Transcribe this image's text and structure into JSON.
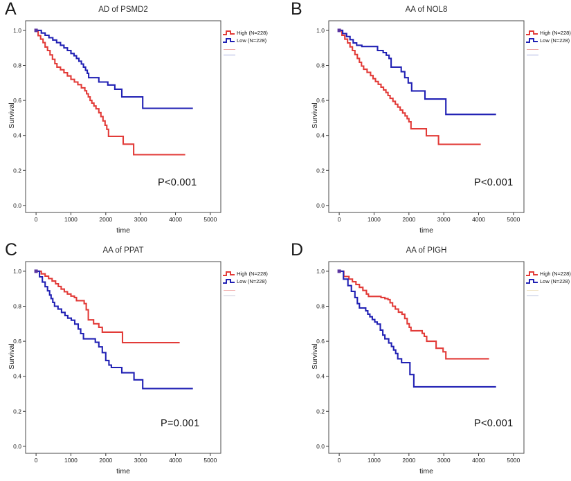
{
  "figure": {
    "description": "Kaplan-Meier survival curves, four panels",
    "accent_red": "#e23b38",
    "accent_blue": "#2121b4"
  },
  "chart_data": [
    {
      "letter": "A",
      "type": "line",
      "subtype": "km_step",
      "title": "AD of PSMD2",
      "xlabel": "time",
      "ylabel": "Survival",
      "p_label": "P<0.001",
      "xlim": [
        -300,
        5300
      ],
      "ylim": [
        -0.04,
        1.055
      ],
      "xticks": [
        0,
        1000,
        2000,
        3000,
        4000,
        5000
      ],
      "yticks": [
        0.0,
        0.2,
        0.4,
        0.6,
        0.8,
        1.0
      ],
      "grid": false,
      "legend_position": "right-top",
      "legend": [
        {
          "label": "High (N=228)",
          "color": "#e23b38"
        },
        {
          "label": "Low  (N=228)",
          "color": "#2121b4"
        }
      ],
      "censored_colors": [
        "#f0a8a6",
        "#a8aede"
      ],
      "series": [
        {
          "name": "High",
          "color": "#e23b38",
          "points": [
            [
              0,
              1.0
            ],
            [
              60,
              0.97
            ],
            [
              130,
              0.95
            ],
            [
              200,
              0.93
            ],
            [
              260,
              0.905
            ],
            [
              330,
              0.885
            ],
            [
              400,
              0.86
            ],
            [
              470,
              0.835
            ],
            [
              540,
              0.81
            ],
            [
              600,
              0.79
            ],
            [
              700,
              0.775
            ],
            [
              800,
              0.758
            ],
            [
              900,
              0.74
            ],
            [
              1000,
              0.72
            ],
            [
              1100,
              0.705
            ],
            [
              1200,
              0.69
            ],
            [
              1300,
              0.672
            ],
            [
              1400,
              0.655
            ],
            [
              1450,
              0.638
            ],
            [
              1500,
              0.62
            ],
            [
              1550,
              0.6
            ],
            [
              1600,
              0.585
            ],
            [
              1660,
              0.568
            ],
            [
              1720,
              0.552
            ],
            [
              1800,
              0.53
            ],
            [
              1860,
              0.508
            ],
            [
              1920,
              0.483
            ],
            [
              1980,
              0.458
            ],
            [
              2030,
              0.435
            ],
            [
              2080,
              0.395
            ],
            [
              2500,
              0.35
            ],
            [
              2800,
              0.29
            ],
            [
              4280,
              0.29
            ]
          ]
        },
        {
          "name": "Low",
          "color": "#2121b4",
          "points": [
            [
              0,
              1.0
            ],
            [
              150,
              0.985
            ],
            [
              260,
              0.972
            ],
            [
              370,
              0.958
            ],
            [
              480,
              0.945
            ],
            [
              590,
              0.93
            ],
            [
              700,
              0.915
            ],
            [
              800,
              0.9
            ],
            [
              900,
              0.885
            ],
            [
              1000,
              0.868
            ],
            [
              1090,
              0.855
            ],
            [
              1160,
              0.84
            ],
            [
              1230,
              0.824
            ],
            [
              1300,
              0.808
            ],
            [
              1360,
              0.79
            ],
            [
              1420,
              0.772
            ],
            [
              1470,
              0.755
            ],
            [
              1510,
              0.73
            ],
            [
              1800,
              0.705
            ],
            [
              2060,
              0.688
            ],
            [
              2260,
              0.664
            ],
            [
              2460,
              0.62
            ],
            [
              3060,
              0.555
            ],
            [
              4500,
              0.555
            ]
          ]
        }
      ]
    },
    {
      "letter": "B",
      "type": "line",
      "subtype": "km_step",
      "title": "AA of NOL8",
      "xlabel": "time",
      "ylabel": "Survival",
      "p_label": "P<0.001",
      "xlim": [
        -300,
        5300
      ],
      "ylim": [
        -0.04,
        1.055
      ],
      "xticks": [
        0,
        1000,
        2000,
        3000,
        4000,
        5000
      ],
      "yticks": [
        0.0,
        0.2,
        0.4,
        0.6,
        0.8,
        1.0
      ],
      "grid": false,
      "legend_position": "right-top",
      "legend": [
        {
          "label": "High (N=228)",
          "color": "#e23b38"
        },
        {
          "label": "Low  (N=228)",
          "color": "#2121b4"
        }
      ],
      "censored_colors": [
        "#f0a8a6",
        "#a8aede"
      ],
      "series": [
        {
          "name": "High",
          "color": "#e23b38",
          "points": [
            [
              0,
              1.0
            ],
            [
              80,
              0.972
            ],
            [
              160,
              0.95
            ],
            [
              240,
              0.928
            ],
            [
              310,
              0.906
            ],
            [
              380,
              0.885
            ],
            [
              450,
              0.862
            ],
            [
              520,
              0.84
            ],
            [
              580,
              0.818
            ],
            [
              640,
              0.796
            ],
            [
              700,
              0.778
            ],
            [
              800,
              0.76
            ],
            [
              900,
              0.742
            ],
            [
              970,
              0.724
            ],
            [
              1040,
              0.708
            ],
            [
              1120,
              0.692
            ],
            [
              1200,
              0.676
            ],
            [
              1270,
              0.66
            ],
            [
              1340,
              0.645
            ],
            [
              1400,
              0.628
            ],
            [
              1460,
              0.612
            ],
            [
              1540,
              0.595
            ],
            [
              1610,
              0.578
            ],
            [
              1680,
              0.562
            ],
            [
              1750,
              0.545
            ],
            [
              1820,
              0.528
            ],
            [
              1890,
              0.512
            ],
            [
              1950,
              0.496
            ],
            [
              2000,
              0.478
            ],
            [
              2060,
              0.438
            ],
            [
              2500,
              0.398
            ],
            [
              2850,
              0.349
            ],
            [
              4060,
              0.349
            ]
          ]
        },
        {
          "name": "Low",
          "color": "#2121b4",
          "points": [
            [
              0,
              1.0
            ],
            [
              100,
              0.982
            ],
            [
              210,
              0.965
            ],
            [
              310,
              0.947
            ],
            [
              400,
              0.928
            ],
            [
              500,
              0.915
            ],
            [
              650,
              0.908
            ],
            [
              1100,
              0.885
            ],
            [
              1260,
              0.873
            ],
            [
              1350,
              0.858
            ],
            [
              1430,
              0.84
            ],
            [
              1490,
              0.79
            ],
            [
              1780,
              0.764
            ],
            [
              1880,
              0.73
            ],
            [
              1980,
              0.7
            ],
            [
              2080,
              0.654
            ],
            [
              2460,
              0.608
            ],
            [
              3060,
              0.52
            ],
            [
              4500,
              0.52
            ]
          ]
        }
      ]
    },
    {
      "letter": "C",
      "type": "line",
      "subtype": "km_step",
      "title": "AA of PPAT",
      "xlabel": "time",
      "ylabel": "Survival",
      "p_label": "P=0.001",
      "xlim": [
        -300,
        5300
      ],
      "ylim": [
        -0.04,
        1.055
      ],
      "xticks": [
        0,
        1000,
        2000,
        3000,
        4000,
        5000
      ],
      "yticks": [
        0.0,
        0.2,
        0.4,
        0.6,
        0.8,
        1.0
      ],
      "grid": false,
      "legend_position": "right-top",
      "legend": [
        {
          "label": "High (N=228)",
          "color": "#e23b38"
        },
        {
          "label": "Low  (N=228)",
          "color": "#2121b4"
        }
      ],
      "censored_colors": [
        "#f0a8a6",
        "#c9c9d8"
      ],
      "series": [
        {
          "name": "High",
          "color": "#e23b38",
          "points": [
            [
              0,
              1.0
            ],
            [
              150,
              0.985
            ],
            [
              260,
              0.972
            ],
            [
              360,
              0.958
            ],
            [
              460,
              0.944
            ],
            [
              560,
              0.928
            ],
            [
              640,
              0.913
            ],
            [
              720,
              0.898
            ],
            [
              810,
              0.883
            ],
            [
              900,
              0.87
            ],
            [
              1000,
              0.858
            ],
            [
              1100,
              0.85
            ],
            [
              1160,
              0.832
            ],
            [
              1380,
              0.815
            ],
            [
              1440,
              0.78
            ],
            [
              1500,
              0.722
            ],
            [
              1650,
              0.7
            ],
            [
              1800,
              0.68
            ],
            [
              1900,
              0.652
            ],
            [
              2480,
              0.592
            ],
            [
              4120,
              0.592
            ]
          ]
        },
        {
          "name": "Low",
          "color": "#2121b4",
          "points": [
            [
              0,
              1.0
            ],
            [
              100,
              0.968
            ],
            [
              180,
              0.938
            ],
            [
              260,
              0.912
            ],
            [
              330,
              0.888
            ],
            [
              390,
              0.864
            ],
            [
              430,
              0.844
            ],
            [
              480,
              0.822
            ],
            [
              530,
              0.8
            ],
            [
              630,
              0.784
            ],
            [
              730,
              0.765
            ],
            [
              830,
              0.747
            ],
            [
              910,
              0.732
            ],
            [
              1010,
              0.72
            ],
            [
              1110,
              0.698
            ],
            [
              1210,
              0.67
            ],
            [
              1280,
              0.644
            ],
            [
              1360,
              0.614
            ],
            [
              1700,
              0.594
            ],
            [
              1800,
              0.568
            ],
            [
              1900,
              0.535
            ],
            [
              2000,
              0.49
            ],
            [
              2090,
              0.464
            ],
            [
              2160,
              0.45
            ],
            [
              2460,
              0.42
            ],
            [
              2810,
              0.38
            ],
            [
              3060,
              0.33
            ],
            [
              4500,
              0.33
            ]
          ]
        }
      ]
    },
    {
      "letter": "D",
      "type": "line",
      "subtype": "km_step",
      "title": "AA of PIGH",
      "xlabel": "time",
      "ylabel": "Survival",
      "p_label": "P<0.001",
      "xlim": [
        -300,
        5300
      ],
      "ylim": [
        -0.04,
        1.055
      ],
      "xticks": [
        0,
        1000,
        2000,
        3000,
        4000,
        5000
      ],
      "yticks": [
        0.0,
        0.2,
        0.4,
        0.6,
        0.8,
        1.0
      ],
      "grid": false,
      "legend_position": "right-top",
      "legend": [
        {
          "label": "High (N=228)",
          "color": "#e23b38"
        },
        {
          "label": "Low  (N=228)",
          "color": "#2121b4"
        }
      ],
      "censored_colors": [
        "#eee0c0",
        "#b8c2de"
      ],
      "series": [
        {
          "name": "High",
          "color": "#e23b38",
          "points": [
            [
              0,
              1.0
            ],
            [
              130,
              0.97
            ],
            [
              280,
              0.955
            ],
            [
              380,
              0.94
            ],
            [
              480,
              0.924
            ],
            [
              580,
              0.908
            ],
            [
              680,
              0.89
            ],
            [
              780,
              0.87
            ],
            [
              840,
              0.856
            ],
            [
              1200,
              0.85
            ],
            [
              1310,
              0.844
            ],
            [
              1400,
              0.838
            ],
            [
              1460,
              0.82
            ],
            [
              1530,
              0.8
            ],
            [
              1610,
              0.784
            ],
            [
              1700,
              0.766
            ],
            [
              1800,
              0.754
            ],
            [
              1880,
              0.73
            ],
            [
              1950,
              0.7
            ],
            [
              2010,
              0.68
            ],
            [
              2060,
              0.66
            ],
            [
              2380,
              0.645
            ],
            [
              2440,
              0.628
            ],
            [
              2510,
              0.6
            ],
            [
              2780,
              0.56
            ],
            [
              2980,
              0.54
            ],
            [
              3060,
              0.5
            ],
            [
              4300,
              0.5
            ]
          ]
        },
        {
          "name": "Low",
          "color": "#2121b4",
          "points": [
            [
              0,
              1.0
            ],
            [
              120,
              0.955
            ],
            [
              250,
              0.918
            ],
            [
              350,
              0.885
            ],
            [
              450,
              0.85
            ],
            [
              520,
              0.815
            ],
            [
              580,
              0.79
            ],
            [
              760,
              0.774
            ],
            [
              820,
              0.755
            ],
            [
              880,
              0.74
            ],
            [
              950,
              0.724
            ],
            [
              1020,
              0.71
            ],
            [
              1090,
              0.698
            ],
            [
              1180,
              0.664
            ],
            [
              1250,
              0.635
            ],
            [
              1310,
              0.614
            ],
            [
              1420,
              0.59
            ],
            [
              1500,
              0.57
            ],
            [
              1560,
              0.55
            ],
            [
              1620,
              0.53
            ],
            [
              1680,
              0.5
            ],
            [
              1790,
              0.478
            ],
            [
              2030,
              0.41
            ],
            [
              2140,
              0.34
            ],
            [
              4500,
              0.34
            ]
          ]
        }
      ]
    }
  ]
}
